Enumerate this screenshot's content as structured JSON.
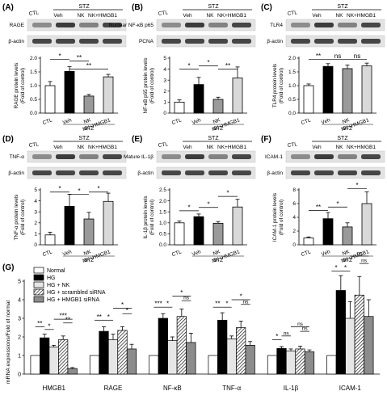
{
  "panels": [
    {
      "letter": "(A)",
      "protein": "RAGE",
      "loading": "β-actin",
      "ylabel": [
        "RAGE protein levels",
        "(Fold of control)"
      ],
      "ticks": [
        "0.0",
        "0.5",
        "1.0",
        "1.5",
        "2.0"
      ],
      "ymax": 2.0,
      "values": [
        1.0,
        1.52,
        0.62,
        1.32
      ],
      "errors": [
        0.15,
        0.17,
        0.06,
        0.09
      ],
      "sig": [
        {
          "a": 0,
          "b": 1,
          "label": "*",
          "h": 1.95
        },
        {
          "a": 1,
          "b": 2,
          "label": "**",
          "h": 1.9
        },
        {
          "a": 1,
          "b": 3,
          "label": "**",
          "h": 1.6
        }
      ]
    },
    {
      "letter": "(B)",
      "protein": "Nuclear NF-κB p65",
      "loading": "PCNA",
      "ylabel": [
        "NF-κB p65 protein levels",
        "(Fold of control)"
      ],
      "ticks": [
        "0",
        "1",
        "2",
        "3",
        "4",
        "5"
      ],
      "ymax": 5,
      "values": [
        1.0,
        2.6,
        1.25,
        3.2
      ],
      "errors": [
        0.2,
        0.65,
        0.2,
        1.0
      ],
      "sig": [
        {
          "a": 0,
          "b": 1,
          "label": "*",
          "h": 4.0
        },
        {
          "a": 1,
          "b": 2,
          "label": "*",
          "h": 4.3
        },
        {
          "a": 2,
          "b": 3,
          "label": "**",
          "h": 4.0
        }
      ]
    },
    {
      "letter": "(C)",
      "protein": "TLR4",
      "loading": "β-actin",
      "ylabel": [
        "TLR4 protein levels",
        "(Fold of control)"
      ],
      "ticks": [
        "0.0",
        "0.5",
        "1.0",
        "1.5",
        "2.0"
      ],
      "ymax": 2.0,
      "values": [
        1.0,
        1.7,
        1.62,
        1.72
      ],
      "errors": [
        0.06,
        0.1,
        0.13,
        0.1
      ],
      "sig": [
        {
          "a": 0,
          "b": 1,
          "label": "**",
          "h": 1.95
        },
        {
          "a": 1,
          "b": 2,
          "label": "ns",
          "h": 1.95
        },
        {
          "a": 2,
          "b": 3,
          "label": "ns",
          "h": 1.95
        }
      ]
    },
    {
      "letter": "(D)",
      "protein": "TNF-α",
      "loading": "β-actin",
      "ylabel": [
        "TNF-α protein levels",
        "(Fold of control)"
      ],
      "ticks": [
        "0",
        "1",
        "2",
        "3",
        "4",
        "5"
      ],
      "ymax": 5,
      "values": [
        0.9,
        3.5,
        2.35,
        3.95
      ],
      "errors": [
        0.25,
        1.1,
        0.6,
        0.75
      ],
      "sig": [
        {
          "a": 0,
          "b": 1,
          "label": "*",
          "h": 4.8
        },
        {
          "a": 1,
          "b": 2,
          "label": "*",
          "h": 4.6
        },
        {
          "a": 2,
          "b": 3,
          "label": "*",
          "h": 4.8
        }
      ]
    },
    {
      "letter": "(E)",
      "protein": "Mature IL-1β",
      "loading": "β-actin",
      "ylabel": [
        "IL-1β protein levels",
        "(Fold of control)"
      ],
      "ticks": [
        "0.0",
        "0.5",
        "1.0",
        "1.5",
        "2.0",
        "2.5"
      ],
      "ymax": 2.5,
      "values": [
        1.0,
        1.28,
        0.98,
        1.72
      ],
      "errors": [
        0.08,
        0.12,
        0.08,
        0.35
      ],
      "sig": [
        {
          "a": 0,
          "b": 1,
          "label": "*",
          "h": 1.55
        },
        {
          "a": 1,
          "b": 2,
          "label": "*",
          "h": 1.7
        },
        {
          "a": 2,
          "b": 3,
          "label": "*",
          "h": 2.2
        }
      ]
    },
    {
      "letter": "(F)",
      "protein": "ICAM-1",
      "loading": "β-actin",
      "ylabel": [
        "ICAM-1 protein levels",
        "(Fold of control)"
      ],
      "ticks": [
        "0",
        "2",
        "4",
        "6",
        "8"
      ],
      "ymax": 8,
      "values": [
        1.0,
        3.8,
        2.6,
        6.0
      ],
      "errors": [
        0.15,
        0.9,
        0.6,
        1.7
      ],
      "sig": [
        {
          "a": 0,
          "b": 1,
          "label": "**",
          "h": 5.0
        },
        {
          "a": 1,
          "b": 2,
          "label": "*",
          "h": 5.5
        },
        {
          "a": 2,
          "b": 3,
          "label": "*",
          "h": 8.2
        }
      ]
    }
  ],
  "xcats": [
    "CTL",
    "Veh",
    "NK",
    "NK+HMGB1"
  ],
  "stz": "STZ",
  "blot_header": {
    "ctl": "CTL",
    "stz": "STZ",
    "groups": [
      "Veh",
      "NK",
      "NK+HMGB1"
    ]
  },
  "colors": {
    "bar1": "#ffffff",
    "bar2": "#000000",
    "bar3": "#9a9a9a",
    "bar4": "#d9d9d9"
  },
  "chart_data": {
    "type": "bar",
    "letter": "(G)",
    "ylabel": [
      "mRNA expressions/Fold of normal"
    ],
    "ticks": [
      "0",
      "1",
      "2",
      "3",
      "4",
      "5"
    ],
    "ymax": 5,
    "categories": [
      "HMGB1",
      "RAGE",
      "NF-κB",
      "TNF-α",
      "IL-1β",
      "ICAM-1"
    ],
    "series": [
      {
        "name": "Normal",
        "color": "#ffffff",
        "pattern": "none",
        "values": [
          1,
          1,
          1,
          1,
          1,
          1
        ],
        "errors": [
          0,
          0,
          0,
          0,
          0,
          0
        ]
      },
      {
        "name": "HG",
        "color": "#000000",
        "pattern": "none",
        "values": [
          1.95,
          2.3,
          3.0,
          2.9,
          1.38,
          4.5
        ],
        "errors": [
          0.2,
          0.25,
          0.25,
          0.4,
          0.1,
          0.8
        ]
      },
      {
        "name": "HG + NK",
        "color": "#e6e6e6",
        "pattern": "none",
        "values": [
          1.45,
          1.85,
          1.8,
          1.9,
          1.25,
          3.0
        ],
        "errors": [
          0.1,
          0.3,
          0.2,
          0.15,
          0.1,
          0.9
        ]
      },
      {
        "name": "HG + scrambled siRNA",
        "color": "#bfbfbf",
        "pattern": "hatch",
        "values": [
          1.85,
          2.35,
          3.1,
          2.5,
          1.35,
          4.25
        ],
        "errors": [
          0.2,
          0.2,
          0.4,
          0.35,
          0.15,
          1.0
        ]
      },
      {
        "name": "HG + HMGB1 siRNA",
        "color": "#8c8c8c",
        "pattern": "none",
        "values": [
          0.3,
          1.35,
          1.7,
          1.55,
          1.2,
          3.1
        ],
        "errors": [
          0.05,
          0.25,
          0.5,
          0.2,
          0.1,
          0.9
        ]
      }
    ],
    "sig": [
      [
        {
          "a": 0,
          "b": 1,
          "label": "**",
          "h": 2.55
        },
        {
          "a": 1,
          "b": 2,
          "label": "*",
          "h": 2.4
        },
        {
          "a": 2,
          "b": 4,
          "label": "***",
          "h": 2.95
        },
        {
          "a": 3,
          "b": 4,
          "label": "**",
          "h": 2.75
        }
      ],
      [
        {
          "a": 0,
          "b": 1,
          "label": "**",
          "h": 2.9
        },
        {
          "a": 1,
          "b": 2,
          "label": "*",
          "h": 2.9
        },
        {
          "a": 2,
          "b": 4,
          "label": "*",
          "h": 3.55
        },
        {
          "a": 3,
          "b": 4,
          "label": "*",
          "h": 3.25
        }
      ],
      [
        {
          "a": 0,
          "b": 1,
          "label": "***",
          "h": 3.6
        },
        {
          "a": 1,
          "b": 2,
          "label": "*",
          "h": 3.6
        },
        {
          "a": 2,
          "b": 4,
          "label": "*",
          "h": 4.2
        },
        {
          "a": 3,
          "b": 4,
          "label": "ns",
          "h": 3.95
        }
      ],
      [
        {
          "a": 0,
          "b": 1,
          "label": "**",
          "h": 3.6
        },
        {
          "a": 1,
          "b": 2,
          "label": "*",
          "h": 3.6
        },
        {
          "a": 2,
          "b": 4,
          "label": "*",
          "h": 4.0
        },
        {
          "a": 3,
          "b": 4,
          "label": "ns",
          "h": 3.75
        }
      ],
      [
        {
          "a": 0,
          "b": 1,
          "label": "*",
          "h": 1.85
        },
        {
          "a": 1,
          "b": 2,
          "label": "ns",
          "h": 2.05
        },
        {
          "a": 2,
          "b": 4,
          "label": "ns",
          "h": 2.55
        },
        {
          "a": 3,
          "b": 4,
          "label": "ns",
          "h": 2.3
        }
      ],
      [
        {
          "a": 0,
          "b": 1,
          "label": "*",
          "h": 5.55
        },
        {
          "a": 1,
          "b": 2,
          "label": "*",
          "h": 5.55
        },
        {
          "a": 2,
          "b": 4,
          "label": "ns",
          "h": 6.35
        },
        {
          "a": 3,
          "b": 4,
          "label": "ns",
          "h": 5.95
        }
      ]
    ]
  }
}
